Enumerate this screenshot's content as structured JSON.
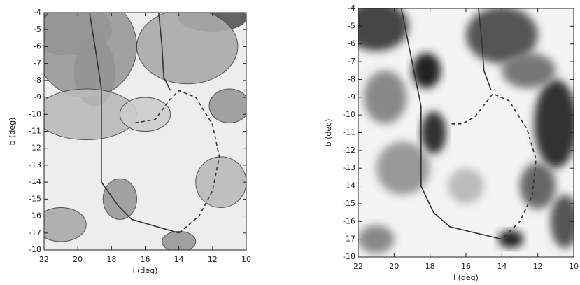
{
  "chart_data": [
    {
      "type": "map",
      "style": "contour",
      "xlabel": "l (deg)",
      "ylabel": "b (deg)",
      "xlim": [
        22,
        10
      ],
      "ylim": [
        -18,
        -4
      ],
      "xticks": [
        22,
        20,
        18,
        16,
        14,
        12,
        10
      ],
      "yticks": [
        -4,
        -5,
        -6,
        -7,
        -8,
        -9,
        -10,
        -11,
        -12,
        -13,
        -14,
        -15,
        -16,
        -17,
        -18
      ],
      "series": [
        {
          "color": "#333333",
          "dashed": false,
          "x": [
            19.3,
            18.9,
            18.6,
            18.6,
            18.6,
            17.6,
            16.8,
            14.0
          ],
          "values": [
            -4,
            -6.5,
            -8.5,
            -10,
            -14,
            -15.4,
            -16.2,
            -17
          ]
        },
        {
          "color": "#333333",
          "dashed": false,
          "x": [
            15.2,
            15.0,
            14.9,
            14.5
          ],
          "values": [
            -4,
            -6,
            -7.8,
            -8.6
          ]
        },
        {
          "color": "#333333",
          "dashed": true,
          "x": [
            16.6,
            15.4,
            14.6,
            14.0,
            13.0,
            12.0,
            11.6,
            12.0,
            12.8,
            14.0
          ],
          "values": [
            -10.5,
            -10.3,
            -9.2,
            -8.6,
            -9.0,
            -10.6,
            -12.5,
            -14.5,
            -16.0,
            -17
          ]
        }
      ]
    },
    {
      "type": "map",
      "style": "grayscale",
      "xlabel": "l (deg)",
      "ylabel": "b (deg)",
      "xlim": [
        22,
        10
      ],
      "ylim": [
        -18,
        -4
      ],
      "xticks": [
        22,
        20,
        18,
        16,
        14,
        12,
        10
      ],
      "yticks": [
        -4,
        -5,
        -6,
        -7,
        -8,
        -9,
        -10,
        -11,
        -12,
        -13,
        -14,
        -15,
        -16,
        -17,
        -18
      ],
      "series": [
        {
          "color": "#333333",
          "dashed": false,
          "x": [
            19.6,
            19.0,
            18.5,
            18.5,
            18.5,
            17.8,
            16.9,
            14.0
          ],
          "values": [
            -4,
            -7,
            -9.5,
            -10.5,
            -14,
            -15.5,
            -16.3,
            -17
          ]
        },
        {
          "color": "#333333",
          "dashed": false,
          "x": [
            15.3,
            15.1,
            15.0,
            14.6
          ],
          "values": [
            -4,
            -6,
            -7.5,
            -8.6
          ]
        },
        {
          "color": "#333333",
          "dashed": true,
          "x": [
            16.8,
            16.2,
            15.5,
            14.5,
            13.6,
            12.6,
            12.1,
            12.3,
            13.0,
            14.0
          ],
          "values": [
            -10.5,
            -10.5,
            -10.1,
            -8.8,
            -9.2,
            -10.8,
            -12.5,
            -14.5,
            -16.0,
            -17
          ]
        }
      ]
    }
  ]
}
